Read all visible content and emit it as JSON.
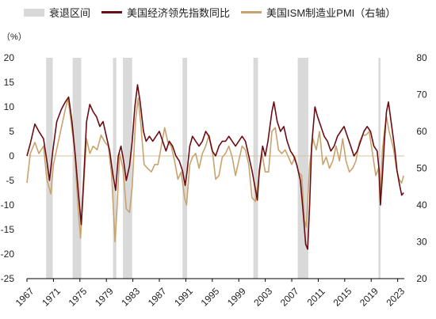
{
  "legend": {
    "recession": "衰退区间",
    "lei": "美国经济领先指数同比",
    "pmi": "美国ISM制造业PMI（右轴）"
  },
  "unit_label": "（%）",
  "colors": {
    "recession": "#d9d9d9",
    "lei": "#6b0d14",
    "pmi": "#c9a36e",
    "zero_line": "#d6c3a3",
    "axis": "#000000"
  },
  "chart_data": {
    "type": "line",
    "x_range": [
      1967,
      2024
    ],
    "x_ticks": [
      "1967",
      "1971",
      "1975",
      "1979",
      "1983",
      "1987",
      "1991",
      "1995",
      "1999",
      "2003",
      "2007",
      "2011",
      "2015",
      "2019",
      "2023"
    ],
    "y_left": {
      "range": [
        -25,
        20
      ],
      "ticks": [
        "-25",
        "-20",
        "-15",
        "-10",
        "-5",
        "0",
        "5",
        "10",
        "15",
        "20"
      ]
    },
    "y_right": {
      "range": [
        20,
        80
      ],
      "ticks": [
        "20",
        "30",
        "40",
        "50",
        "60",
        "70",
        "80"
      ]
    },
    "recessions": [
      [
        1969.9,
        1970.9
      ],
      [
        1973.9,
        1975.2
      ],
      [
        1980.0,
        1980.5
      ],
      [
        1981.5,
        1982.9
      ],
      [
        1990.5,
        1991.2
      ],
      [
        2001.2,
        2001.9
      ],
      [
        2007.9,
        2009.5
      ],
      [
        2020.1,
        2020.4
      ]
    ],
    "series": [
      {
        "name": "美国经济领先指数同比",
        "axis": "left",
        "points": [
          [
            1967,
            0
          ],
          [
            1967.5,
            2.5
          ],
          [
            1968.2,
            6.5
          ],
          [
            1968.8,
            5
          ],
          [
            1969.5,
            3.5
          ],
          [
            1970.0,
            -1
          ],
          [
            1970.4,
            -5
          ],
          [
            1970.9,
            1
          ],
          [
            1971.5,
            7
          ],
          [
            1972.2,
            9.5
          ],
          [
            1972.8,
            11
          ],
          [
            1973.3,
            12
          ],
          [
            1973.8,
            7
          ],
          [
            1974.3,
            0
          ],
          [
            1974.8,
            -8
          ],
          [
            1975.2,
            -14
          ],
          [
            1975.6,
            -4
          ],
          [
            1976.0,
            7
          ],
          [
            1976.5,
            10.5
          ],
          [
            1977.0,
            9
          ],
          [
            1977.5,
            8
          ],
          [
            1978.0,
            6
          ],
          [
            1978.5,
            7
          ],
          [
            1979.0,
            4
          ],
          [
            1979.5,
            1
          ],
          [
            1980.0,
            -4
          ],
          [
            1980.4,
            -7
          ],
          [
            1980.8,
            0
          ],
          [
            1981.2,
            2
          ],
          [
            1981.6,
            -1
          ],
          [
            1982.0,
            -5
          ],
          [
            1982.5,
            -2
          ],
          [
            1982.9,
            3
          ],
          [
            1983.3,
            10
          ],
          [
            1983.7,
            14.5
          ],
          [
            1984.1,
            11
          ],
          [
            1984.6,
            5
          ],
          [
            1985.0,
            3
          ],
          [
            1985.5,
            4
          ],
          [
            1986.0,
            3
          ],
          [
            1986.5,
            4
          ],
          [
            1987.0,
            5
          ],
          [
            1987.5,
            3
          ],
          [
            1988.0,
            1
          ],
          [
            1988.5,
            3
          ],
          [
            1989.0,
            2
          ],
          [
            1989.5,
            0
          ],
          [
            1990.0,
            -1
          ],
          [
            1990.5,
            -3
          ],
          [
            1990.9,
            -6
          ],
          [
            1991.2,
            -3
          ],
          [
            1991.6,
            2
          ],
          [
            1992.0,
            4
          ],
          [
            1992.5,
            3
          ],
          [
            1993.0,
            2
          ],
          [
            1993.5,
            3
          ],
          [
            1994.0,
            5
          ],
          [
            1994.5,
            4
          ],
          [
            1995.0,
            1
          ],
          [
            1995.5,
            0
          ],
          [
            1996.0,
            2
          ],
          [
            1996.5,
            3
          ],
          [
            1997.0,
            3
          ],
          [
            1997.5,
            4
          ],
          [
            1998.0,
            3
          ],
          [
            1998.5,
            2
          ],
          [
            1999.0,
            3
          ],
          [
            1999.5,
            4
          ],
          [
            2000.0,
            3
          ],
          [
            2000.5,
            0
          ],
          [
            2001.0,
            -3
          ],
          [
            2001.4,
            -6
          ],
          [
            2001.8,
            -9
          ],
          [
            2002.1,
            -3
          ],
          [
            2002.6,
            2
          ],
          [
            2003.0,
            0
          ],
          [
            2003.4,
            3
          ],
          [
            2004.0,
            9
          ],
          [
            2004.3,
            11
          ],
          [
            2004.8,
            7
          ],
          [
            2005.3,
            5
          ],
          [
            2005.8,
            6
          ],
          [
            2006.3,
            3
          ],
          [
            2006.8,
            1
          ],
          [
            2007.3,
            0
          ],
          [
            2007.8,
            -2
          ],
          [
            2008.3,
            -5
          ],
          [
            2008.7,
            -11
          ],
          [
            2009.1,
            -18
          ],
          [
            2009.4,
            -19
          ],
          [
            2009.7,
            -10
          ],
          [
            2010.0,
            2
          ],
          [
            2010.5,
            10
          ],
          [
            2010.9,
            8
          ],
          [
            2011.4,
            6
          ],
          [
            2011.9,
            4
          ],
          [
            2012.4,
            3
          ],
          [
            2012.9,
            1
          ],
          [
            2013.4,
            2
          ],
          [
            2013.9,
            4
          ],
          [
            2014.4,
            5
          ],
          [
            2014.9,
            6
          ],
          [
            2015.4,
            4
          ],
          [
            2015.9,
            2
          ],
          [
            2016.4,
            0
          ],
          [
            2016.9,
            1
          ],
          [
            2017.4,
            3
          ],
          [
            2017.9,
            5
          ],
          [
            2018.4,
            6
          ],
          [
            2018.9,
            5
          ],
          [
            2019.4,
            2
          ],
          [
            2019.9,
            1
          ],
          [
            2020.2,
            -3
          ],
          [
            2020.4,
            -10
          ],
          [
            2020.7,
            -4
          ],
          [
            2021.0,
            3
          ],
          [
            2021.3,
            9
          ],
          [
            2021.6,
            11
          ],
          [
            2021.9,
            8
          ],
          [
            2022.2,
            5
          ],
          [
            2022.6,
            1
          ],
          [
            2022.9,
            -3
          ],
          [
            2023.3,
            -6
          ],
          [
            2023.6,
            -8
          ],
          [
            2023.9,
            -7.5
          ]
        ]
      },
      {
        "name": "美国ISM制造业PMI（右轴）",
        "axis": "right",
        "points": [
          [
            1967,
            46
          ],
          [
            1967.5,
            54
          ],
          [
            1968.2,
            57
          ],
          [
            1968.8,
            54
          ],
          [
            1969.5,
            56
          ],
          [
            1970.0,
            47
          ],
          [
            1970.6,
            43
          ],
          [
            1971.0,
            51
          ],
          [
            1971.6,
            56
          ],
          [
            1972.2,
            61
          ],
          [
            1972.8,
            66
          ],
          [
            1973.2,
            69
          ],
          [
            1973.7,
            62
          ],
          [
            1974.2,
            55
          ],
          [
            1974.7,
            40
          ],
          [
            1975.1,
            31
          ],
          [
            1975.6,
            46
          ],
          [
            1976.0,
            58
          ],
          [
            1976.5,
            54
          ],
          [
            1977.0,
            56
          ],
          [
            1977.6,
            55
          ],
          [
            1978.2,
            59
          ],
          [
            1978.8,
            57
          ],
          [
            1979.3,
            56
          ],
          [
            1979.8,
            48
          ],
          [
            1980.3,
            30
          ],
          [
            1980.6,
            39
          ],
          [
            1981.0,
            54
          ],
          [
            1981.5,
            50
          ],
          [
            1982.0,
            39
          ],
          [
            1982.5,
            38
          ],
          [
            1982.9,
            45
          ],
          [
            1983.4,
            63
          ],
          [
            1983.8,
            69
          ],
          [
            1984.2,
            62
          ],
          [
            1984.7,
            51
          ],
          [
            1985.2,
            50
          ],
          [
            1985.8,
            49
          ],
          [
            1986.3,
            51
          ],
          [
            1986.8,
            51
          ],
          [
            1987.3,
            56
          ],
          [
            1987.8,
            61
          ],
          [
            1988.3,
            57
          ],
          [
            1988.8,
            56
          ],
          [
            1989.3,
            52
          ],
          [
            1989.8,
            47
          ],
          [
            1990.3,
            49
          ],
          [
            1990.8,
            42
          ],
          [
            1991.1,
            40
          ],
          [
            1991.6,
            51
          ],
          [
            1992.0,
            53
          ],
          [
            1992.5,
            54
          ],
          [
            1993.0,
            50
          ],
          [
            1993.5,
            54
          ],
          [
            1994.0,
            56
          ],
          [
            1994.5,
            59
          ],
          [
            1995.0,
            55
          ],
          [
            1995.5,
            47
          ],
          [
            1996.0,
            48
          ],
          [
            1996.5,
            53
          ],
          [
            1997.0,
            54
          ],
          [
            1997.5,
            56
          ],
          [
            1998.0,
            53
          ],
          [
            1998.5,
            48
          ],
          [
            1999.0,
            52
          ],
          [
            1999.5,
            56
          ],
          [
            2000.0,
            55
          ],
          [
            2000.5,
            51
          ],
          [
            2001.0,
            42
          ],
          [
            2001.5,
            41
          ],
          [
            2002.0,
            47
          ],
          [
            2002.5,
            54
          ],
          [
            2003.0,
            49
          ],
          [
            2003.5,
            49
          ],
          [
            2004.0,
            60
          ],
          [
            2004.5,
            61
          ],
          [
            2005.0,
            55
          ],
          [
            2005.5,
            54
          ],
          [
            2006.0,
            55
          ],
          [
            2006.5,
            53
          ],
          [
            2007.0,
            51
          ],
          [
            2007.5,
            53
          ],
          [
            2008.0,
            49
          ],
          [
            2008.5,
            48
          ],
          [
            2008.9,
            36
          ],
          [
            2009.2,
            34
          ],
          [
            2009.7,
            51
          ],
          [
            2010.2,
            58
          ],
          [
            2010.7,
            55
          ],
          [
            2011.2,
            60
          ],
          [
            2011.7,
            51
          ],
          [
            2012.2,
            53
          ],
          [
            2012.7,
            50
          ],
          [
            2013.2,
            52
          ],
          [
            2013.7,
            56
          ],
          [
            2014.2,
            52
          ],
          [
            2014.7,
            58
          ],
          [
            2015.2,
            52
          ],
          [
            2015.7,
            49
          ],
          [
            2016.2,
            50
          ],
          [
            2016.7,
            52
          ],
          [
            2017.2,
            57
          ],
          [
            2017.7,
            59
          ],
          [
            2018.2,
            59
          ],
          [
            2018.7,
            60
          ],
          [
            2019.2,
            54
          ],
          [
            2019.7,
            48
          ],
          [
            2020.1,
            50
          ],
          [
            2020.35,
            41
          ],
          [
            2020.7,
            55
          ],
          [
            2021.0,
            60
          ],
          [
            2021.3,
            64
          ],
          [
            2021.7,
            60
          ],
          [
            2022.0,
            58
          ],
          [
            2022.4,
            55
          ],
          [
            2022.8,
            50
          ],
          [
            2023.2,
            47
          ],
          [
            2023.6,
            46
          ],
          [
            2023.9,
            48
          ]
        ]
      }
    ]
  }
}
